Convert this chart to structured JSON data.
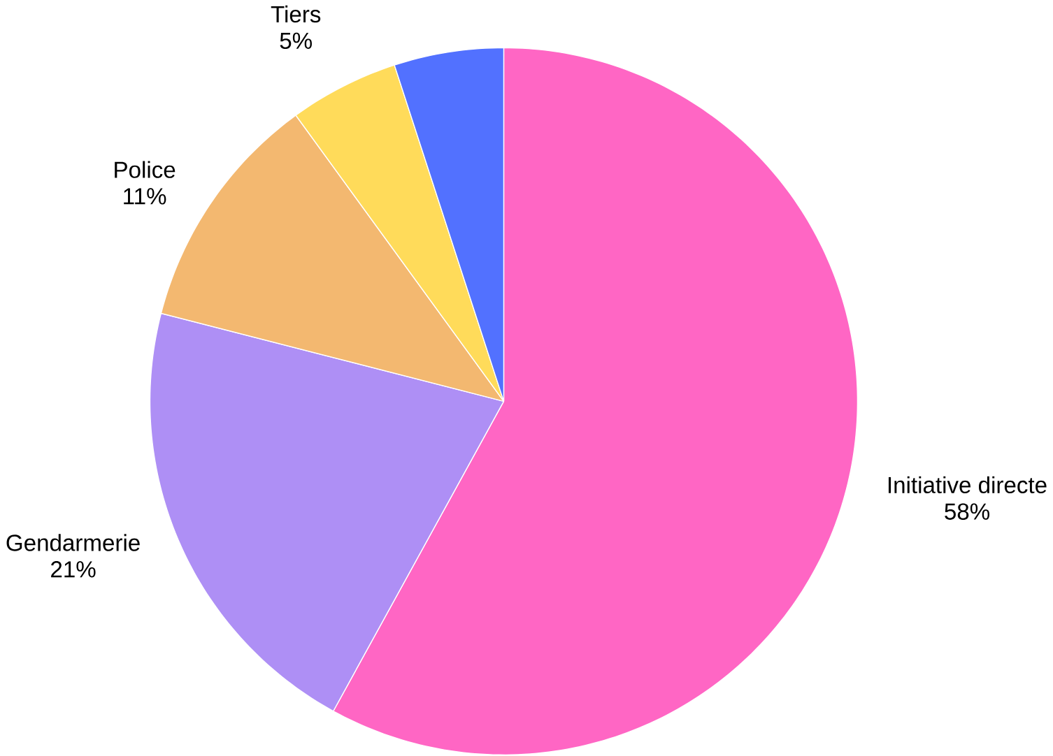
{
  "chart_data": {
    "type": "pie",
    "categories": [
      "Initiative directe",
      "Gendarmerie",
      "Police",
      "Tiers",
      null
    ],
    "values": [
      58,
      21,
      11,
      5,
      5
    ],
    "value_labels": [
      "58%",
      "21%",
      "11%",
      "5%",
      null
    ],
    "colors": [
      "#ff66c4",
      "#ae8ff5",
      "#f3b870",
      "#ffdb5a",
      "#5271ff"
    ]
  }
}
